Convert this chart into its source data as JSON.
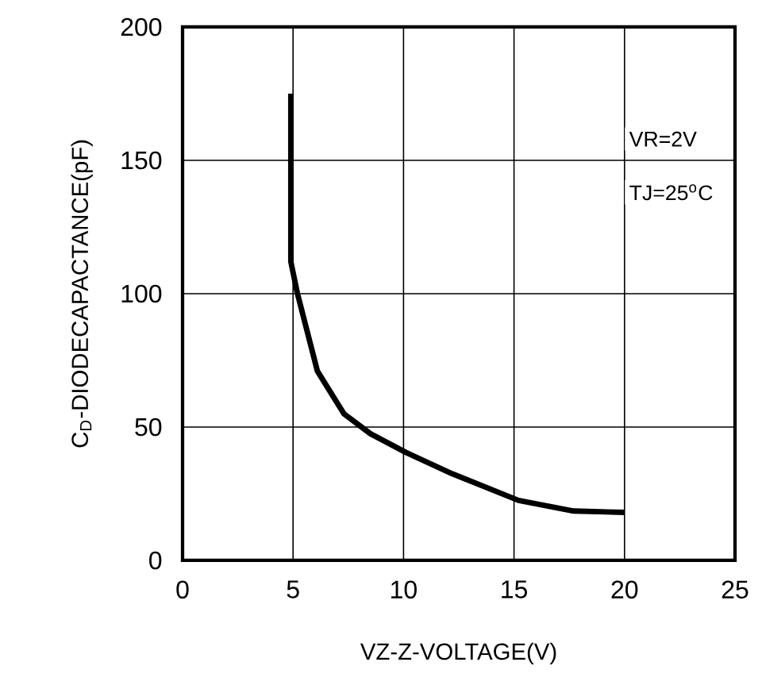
{
  "chart_data": {
    "type": "line",
    "xlabel": "VZ-Z-VOLTAGE(V)",
    "ylabel": "C$_{D}$-DIODECAPACTANCE(pF)",
    "annotations": [
      "VR=2V",
      "TJ=25$^{o}$C"
    ],
    "x": [
      4.9,
      4.9,
      5.2,
      6.1,
      7.3,
      8.5,
      10.1,
      12.2,
      15.2,
      17.7,
      20
    ],
    "series": [
      {
        "color": "#000000",
        "values": [
          175,
          112,
          100,
          71,
          55,
          47.5,
          40.5,
          32.5,
          22.5,
          18.5,
          18
        ]
      }
    ],
    "xlim": [
      0,
      25
    ],
    "ylim": [
      0,
      200
    ],
    "xticks": [
      0,
      5,
      10,
      15,
      20,
      25
    ],
    "yticks": [
      0,
      50,
      100,
      150,
      200
    ],
    "grid": true,
    "line_style": "solid",
    "marker": "none"
  }
}
